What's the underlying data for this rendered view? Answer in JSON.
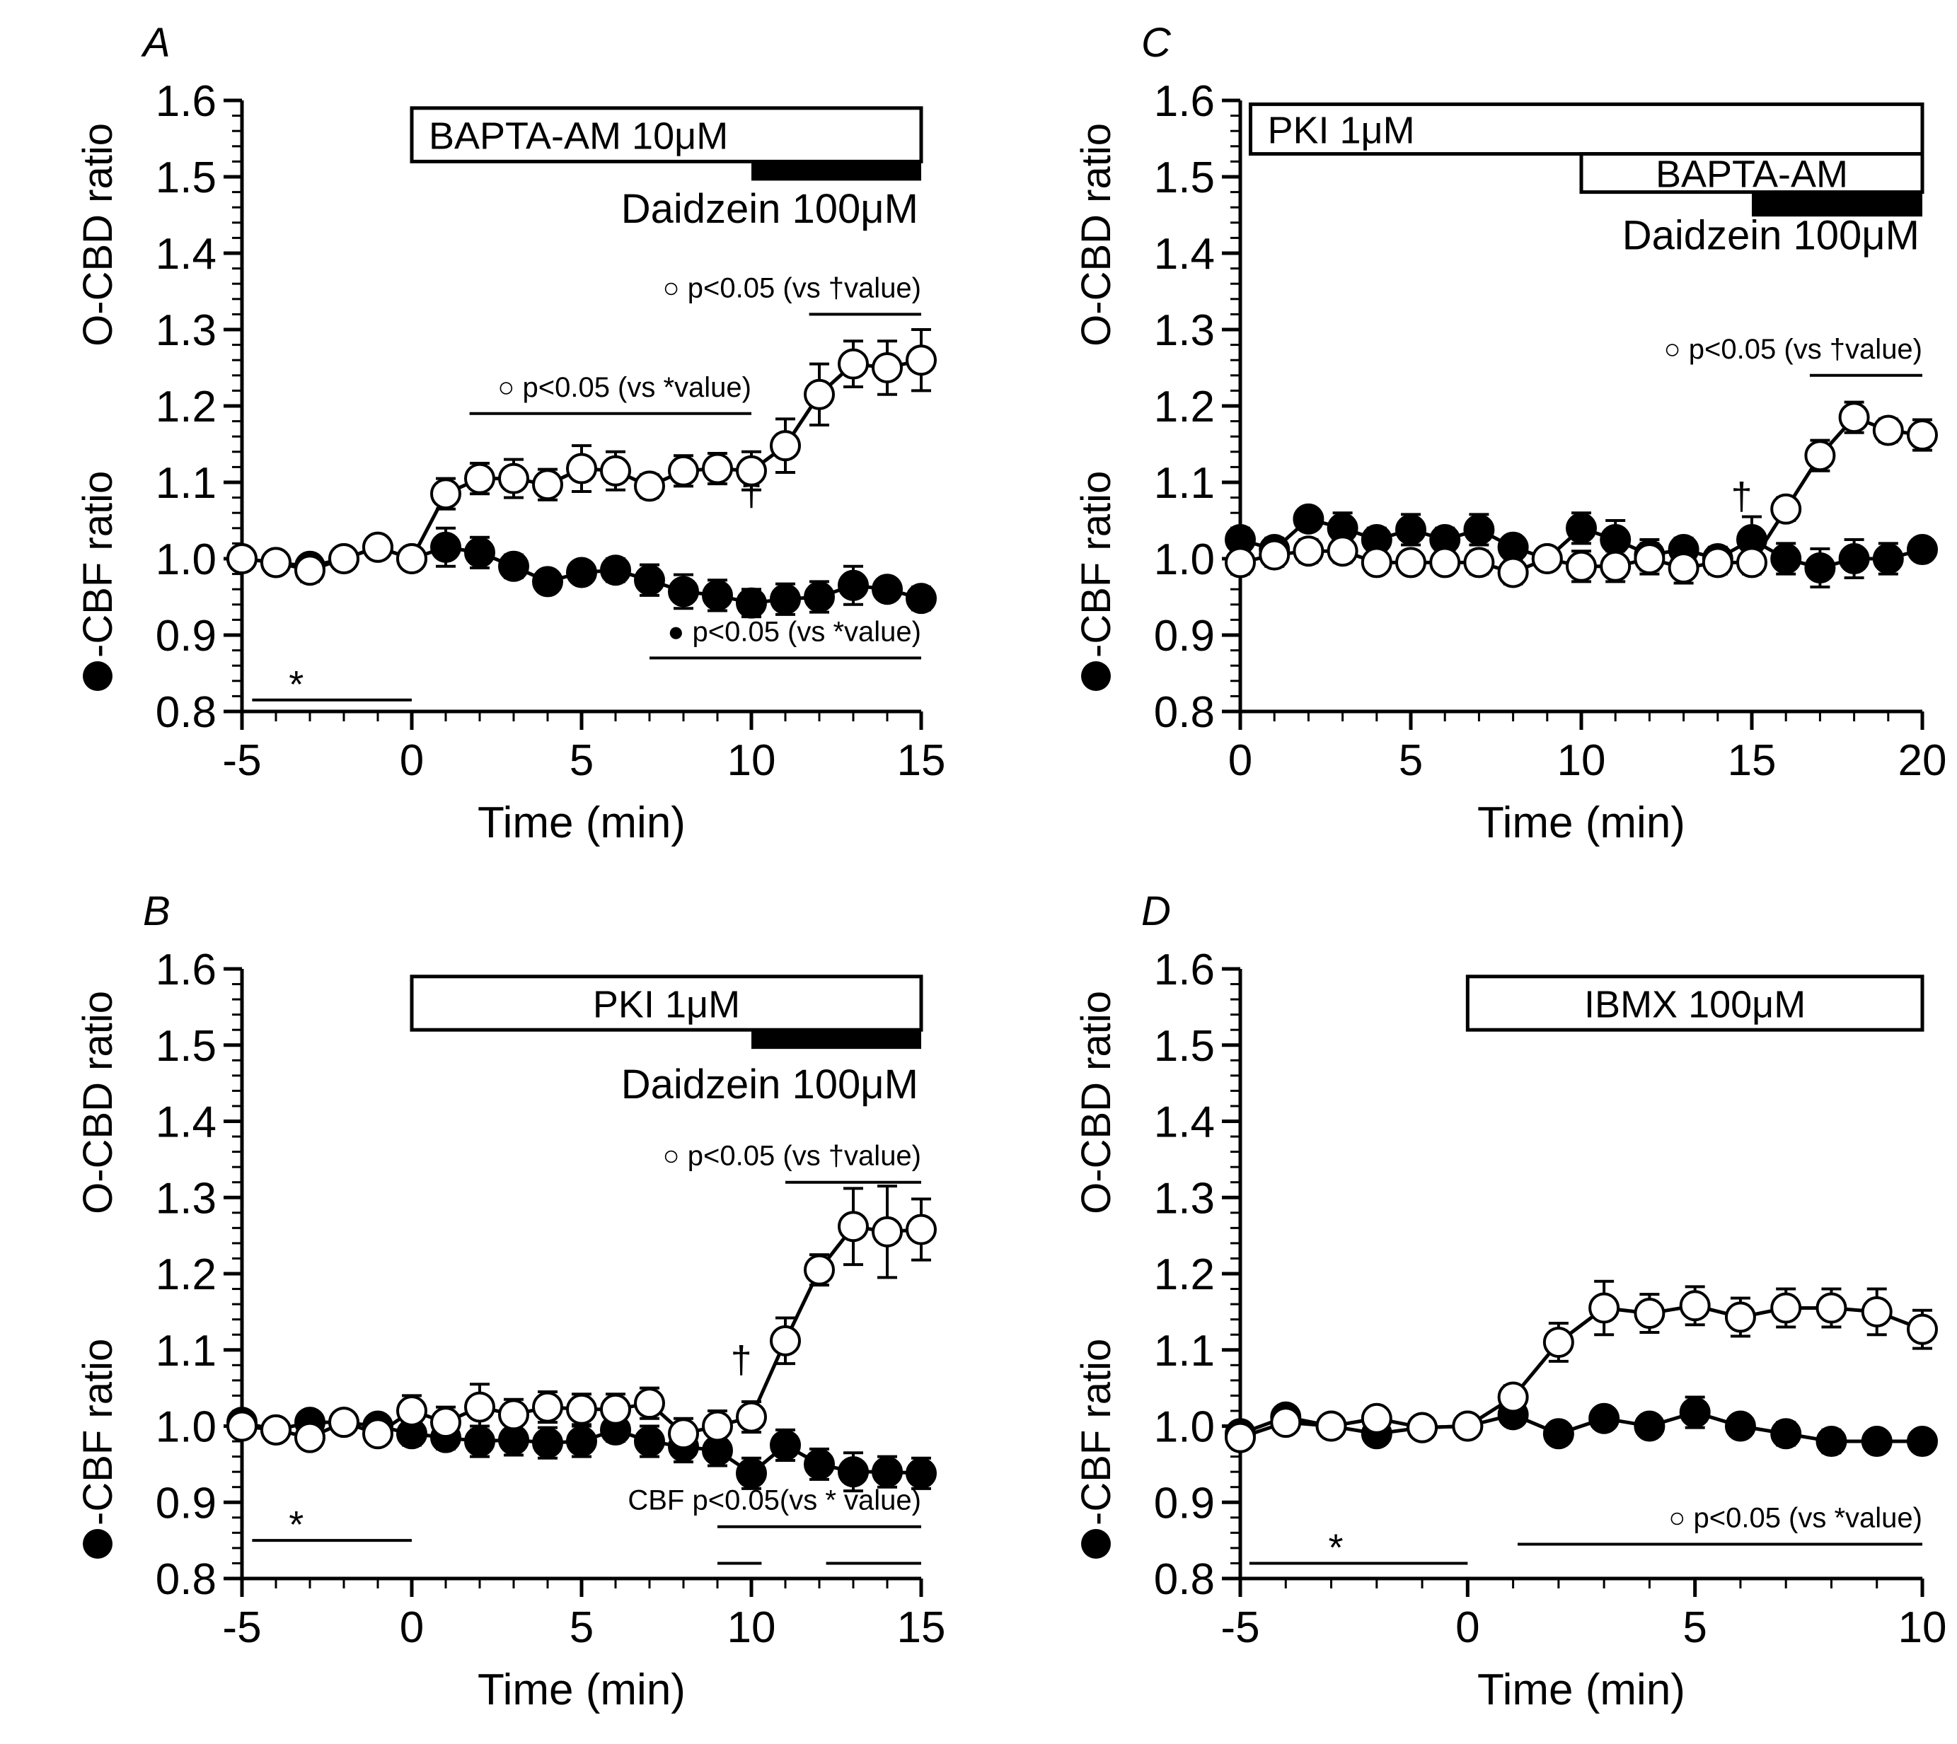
{
  "chart_data": [
    {
      "type": "line",
      "panel": "A",
      "x": [
        -5,
        -4,
        -3,
        -2,
        -1,
        0,
        1,
        2,
        3,
        4,
        5,
        6,
        7,
        8,
        9,
        10,
        11,
        12,
        13,
        14,
        15
      ],
      "xlim": [
        -5,
        15
      ],
      "xticks": [
        "-5",
        "0",
        "5",
        "10",
        "15"
      ],
      "xlabel": "Time (min)",
      "ylim": [
        0.8,
        1.6
      ],
      "yticks": [
        "0.8",
        "0.9",
        "1.0",
        "1.1",
        "1.2",
        "1.3",
        "1.4",
        "1.5",
        "1.6"
      ],
      "ylabel_filled": "-CBF ratio",
      "ylabel_open": "O-CBD ratio",
      "series": [
        {
          "marker": "filled",
          "values": [
            1.0,
            0.995,
            0.99,
            1.0,
            1.015,
            1.0,
            1.015,
            1.008,
            0.99,
            0.97,
            0.982,
            0.985,
            0.972,
            0.957,
            0.952,
            0.942,
            0.947,
            0.95,
            0.965,
            0.96,
            0.948
          ],
          "errors": [
            0.01,
            0.01,
            0.01,
            0.01,
            0.01,
            0.01,
            0.025,
            0.02,
            0.015,
            0.008,
            0.01,
            0.015,
            0.02,
            0.022,
            0.02,
            0.018,
            0.02,
            0.02,
            0.025,
            0.012,
            0.015
          ]
        },
        {
          "marker": "open",
          "values": [
            1.0,
            0.995,
            0.985,
            1.0,
            1.015,
            1.0,
            1.085,
            1.105,
            1.105,
            1.097,
            1.118,
            1.115,
            1.095,
            1.115,
            1.118,
            1.115,
            1.148,
            1.215,
            1.255,
            1.25,
            1.26
          ],
          "errors": [
            0.01,
            0.01,
            0.015,
            0.01,
            0.01,
            0.01,
            0.02,
            0.02,
            0.025,
            0.02,
            0.03,
            0.025,
            0.015,
            0.02,
            0.02,
            0.025,
            0.035,
            0.04,
            0.03,
            0.035,
            0.04
          ]
        }
      ],
      "treatments": [
        {
          "label": "BAPTA-AM 10μM",
          "style": "open-box",
          "x": [
            0,
            15
          ]
        },
        {
          "label": "Daidzein 100μM",
          "style": "filled-bar",
          "x": [
            10,
            15
          ]
        }
      ],
      "significance": [
        {
          "text": "○ p<0.05 (vs †value)",
          "x": [
            11.7,
            15
          ],
          "y": 1.32
        },
        {
          "text": "○ p<0.05 (vs *value)",
          "x": [
            1.7,
            10
          ],
          "y": 1.19
        },
        {
          "text": "● p<0.05 (vs *value)",
          "x": [
            7,
            15
          ],
          "y": 0.87
        },
        {
          "text": "",
          "x": [
            -4.7,
            0
          ],
          "y": 0.815
        }
      ],
      "marks": [
        {
          "text": "*",
          "x": -3.4,
          "y": 0.815
        },
        {
          "text": "†",
          "x": 10,
          "y": 1.07
        }
      ]
    },
    {
      "type": "line",
      "panel": "B",
      "x": [
        -5,
        -4,
        -3,
        -2,
        -1,
        0,
        1,
        2,
        3,
        4,
        5,
        6,
        7,
        8,
        9,
        10,
        11,
        12,
        13,
        14,
        15
      ],
      "xlim": [
        -5,
        15
      ],
      "xticks": [
        "-5",
        "0",
        "5",
        "10",
        "15"
      ],
      "xlabel": "Time (min)",
      "ylim": [
        0.8,
        1.6
      ],
      "yticks": [
        "0.8",
        "0.9",
        "1.0",
        "1.1",
        "1.2",
        "1.3",
        "1.4",
        "1.5",
        "1.6"
      ],
      "ylabel_filled": "-CBF ratio",
      "ylabel_open": "O-CBD ratio",
      "series": [
        {
          "marker": "filled",
          "values": [
            1.005,
            0.995,
            1.005,
            1.005,
            1.0,
            0.99,
            0.985,
            0.98,
            0.982,
            0.978,
            0.98,
            0.995,
            0.98,
            0.973,
            0.968,
            0.938,
            0.975,
            0.95,
            0.94,
            0.94,
            0.938
          ],
          "errors": [
            0.01,
            0.01,
            0.01,
            0.01,
            0.01,
            0.015,
            0.015,
            0.02,
            0.02,
            0.02,
            0.02,
            0.015,
            0.02,
            0.02,
            0.02,
            0.02,
            0.02,
            0.02,
            0.025,
            0.02,
            0.02
          ]
        },
        {
          "marker": "open",
          "values": [
            1.0,
            0.995,
            0.985,
            1.005,
            0.99,
            1.02,
            1.005,
            1.025,
            1.015,
            1.025,
            1.022,
            1.022,
            1.03,
            0.99,
            1.0,
            1.012,
            1.112,
            1.205,
            1.262,
            1.255,
            1.258
          ],
          "errors": [
            0.01,
            0.01,
            0.01,
            0.01,
            0.01,
            0.02,
            0.02,
            0.03,
            0.02,
            0.02,
            0.02,
            0.02,
            0.02,
            0.02,
            0.02,
            0.02,
            0.03,
            0.02,
            0.05,
            0.06,
            0.04
          ]
        }
      ],
      "treatments": [
        {
          "label": "PKI 1μM",
          "style": "open-box",
          "x": [
            0,
            15
          ]
        },
        {
          "label": "Daidzein 100μM",
          "style": "filled-bar",
          "x": [
            10,
            15
          ]
        }
      ],
      "significance": [
        {
          "text": "○ p<0.05 (vs †value)",
          "x": [
            11,
            15
          ],
          "y": 1.32
        },
        {
          "text": "CBF p<0.05(vs * value)",
          "x": [
            9,
            15
          ],
          "y": 0.868
        },
        {
          "text": "",
          "x": [
            9,
            10.3
          ],
          "y": 0.82
        },
        {
          "text": "",
          "x": [
            12.2,
            15
          ],
          "y": 0.82
        },
        {
          "text": "",
          "x": [
            -4.7,
            0
          ],
          "y": 0.85
        }
      ],
      "marks": [
        {
          "text": "*",
          "x": -3.4,
          "y": 0.85
        },
        {
          "text": "†",
          "x": 9.7,
          "y": 1.07
        }
      ]
    },
    {
      "type": "line",
      "panel": "C",
      "x": [
        0,
        1,
        2,
        3,
        4,
        5,
        6,
        7,
        8,
        9,
        10,
        11,
        12,
        13,
        14,
        15,
        16,
        17,
        18,
        19,
        20
      ],
      "xlim": [
        0,
        20
      ],
      "xticks": [
        "0",
        "5",
        "10",
        "15",
        "20"
      ],
      "xlabel": "Time (min)",
      "ylim": [
        0.8,
        1.6
      ],
      "yticks": [
        "0.8",
        "0.9",
        "1.0",
        "1.1",
        "1.2",
        "1.3",
        "1.4",
        "1.5",
        "1.6"
      ],
      "ylabel_filled": "-CBF ratio",
      "ylabel_open": "O-CBD ratio",
      "series": [
        {
          "marker": "filled",
          "values": [
            1.025,
            1.012,
            1.052,
            1.04,
            1.025,
            1.038,
            1.025,
            1.038,
            1.015,
            1.0,
            1.04,
            1.025,
            1.005,
            1.012,
            1.0,
            1.025,
            1.0,
            0.988,
            1.0,
            1.0,
            1.012
          ],
          "errors": [
            0.015,
            0.015,
            0.012,
            0.02,
            0.015,
            0.02,
            0.015,
            0.02,
            0.012,
            0.01,
            0.02,
            0.025,
            0.02,
            0.015,
            0.015,
            0.03,
            0.02,
            0.025,
            0.025,
            0.02,
            0.012
          ]
        },
        {
          "marker": "open",
          "values": [
            0.995,
            1.005,
            1.01,
            1.01,
            0.995,
            0.995,
            0.995,
            0.995,
            0.982,
            1.0,
            0.99,
            0.99,
            1.0,
            0.988,
            0.995,
            0.995,
            1.065,
            1.135,
            1.185,
            1.168,
            1.162
          ],
          "errors": [
            0.015,
            0.015,
            0.015,
            0.015,
            0.01,
            0.01,
            0.01,
            0.015,
            0.015,
            0.01,
            0.02,
            0.02,
            0.02,
            0.02,
            0.015,
            0.015,
            0.015,
            0.02,
            0.02,
            0.015,
            0.02
          ]
        }
      ],
      "treatments": [
        {
          "label": "PKI 1μM",
          "style": "open-box",
          "x": [
            0.3,
            20
          ]
        },
        {
          "label": "BAPTA-AM",
          "style": "open-box",
          "x": [
            10,
            20
          ]
        },
        {
          "label": "Daidzein 100μM",
          "style": "filled-bar",
          "x": [
            15,
            20
          ]
        }
      ],
      "significance": [
        {
          "text": "○ p<0.05 (vs †value)",
          "x": [
            16.7,
            20
          ],
          "y": 1.24
        }
      ],
      "marks": [
        {
          "text": "†",
          "x": 14.7,
          "y": 1.065
        }
      ]
    },
    {
      "type": "line",
      "panel": "D",
      "x": [
        -5,
        -4,
        -3,
        -2,
        -1,
        0,
        1,
        2,
        3,
        4,
        5,
        6,
        7,
        8,
        9,
        10
      ],
      "xlim": [
        -5,
        10
      ],
      "xticks": [
        "-5",
        "0",
        "5",
        "10"
      ],
      "xlabel": "Time (min)",
      "ylim": [
        0.8,
        1.6
      ],
      "yticks": [
        "0.8",
        "0.9",
        "1.0",
        "1.1",
        "1.2",
        "1.3",
        "1.4",
        "1.5",
        "1.6"
      ],
      "ylabel_filled": "-CBF ratio",
      "ylabel_open": "O-CBD ratio",
      "series": [
        {
          "marker": "filled",
          "values": [
            0.99,
            1.012,
            1.0,
            0.99,
            0.998,
            1.0,
            1.015,
            0.99,
            1.01,
            1.0,
            1.018,
            1.0,
            0.99,
            0.98,
            0.98,
            0.98
          ],
          "errors": [
            0.01,
            0.01,
            0.01,
            0.01,
            0.01,
            0.01,
            0.012,
            0.01,
            0.012,
            0.012,
            0.02,
            0.012,
            0.015,
            0.015,
            0.01,
            0.01
          ]
        },
        {
          "marker": "open",
          "values": [
            0.985,
            1.005,
            1.0,
            1.01,
            0.998,
            1.0,
            1.038,
            1.11,
            1.155,
            1.148,
            1.158,
            1.143,
            1.155,
            1.155,
            1.15,
            1.127
          ],
          "errors": [
            0.01,
            0.01,
            0.01,
            0.01,
            0.01,
            0.01,
            0.015,
            0.025,
            0.035,
            0.025,
            0.025,
            0.025,
            0.025,
            0.025,
            0.03,
            0.025
          ]
        }
      ],
      "treatments": [
        {
          "label": "IBMX 100μM",
          "style": "open-box",
          "x": [
            0,
            10
          ]
        }
      ],
      "significance": [
        {
          "text": "○ p<0.05 (vs *value)",
          "x": [
            1.1,
            10
          ],
          "y": 0.845
        },
        {
          "text": "",
          "x": [
            -4.8,
            0
          ],
          "y": 0.82
        }
      ],
      "marks": [
        {
          "text": "*",
          "x": -2.9,
          "y": 0.82
        }
      ]
    }
  ]
}
